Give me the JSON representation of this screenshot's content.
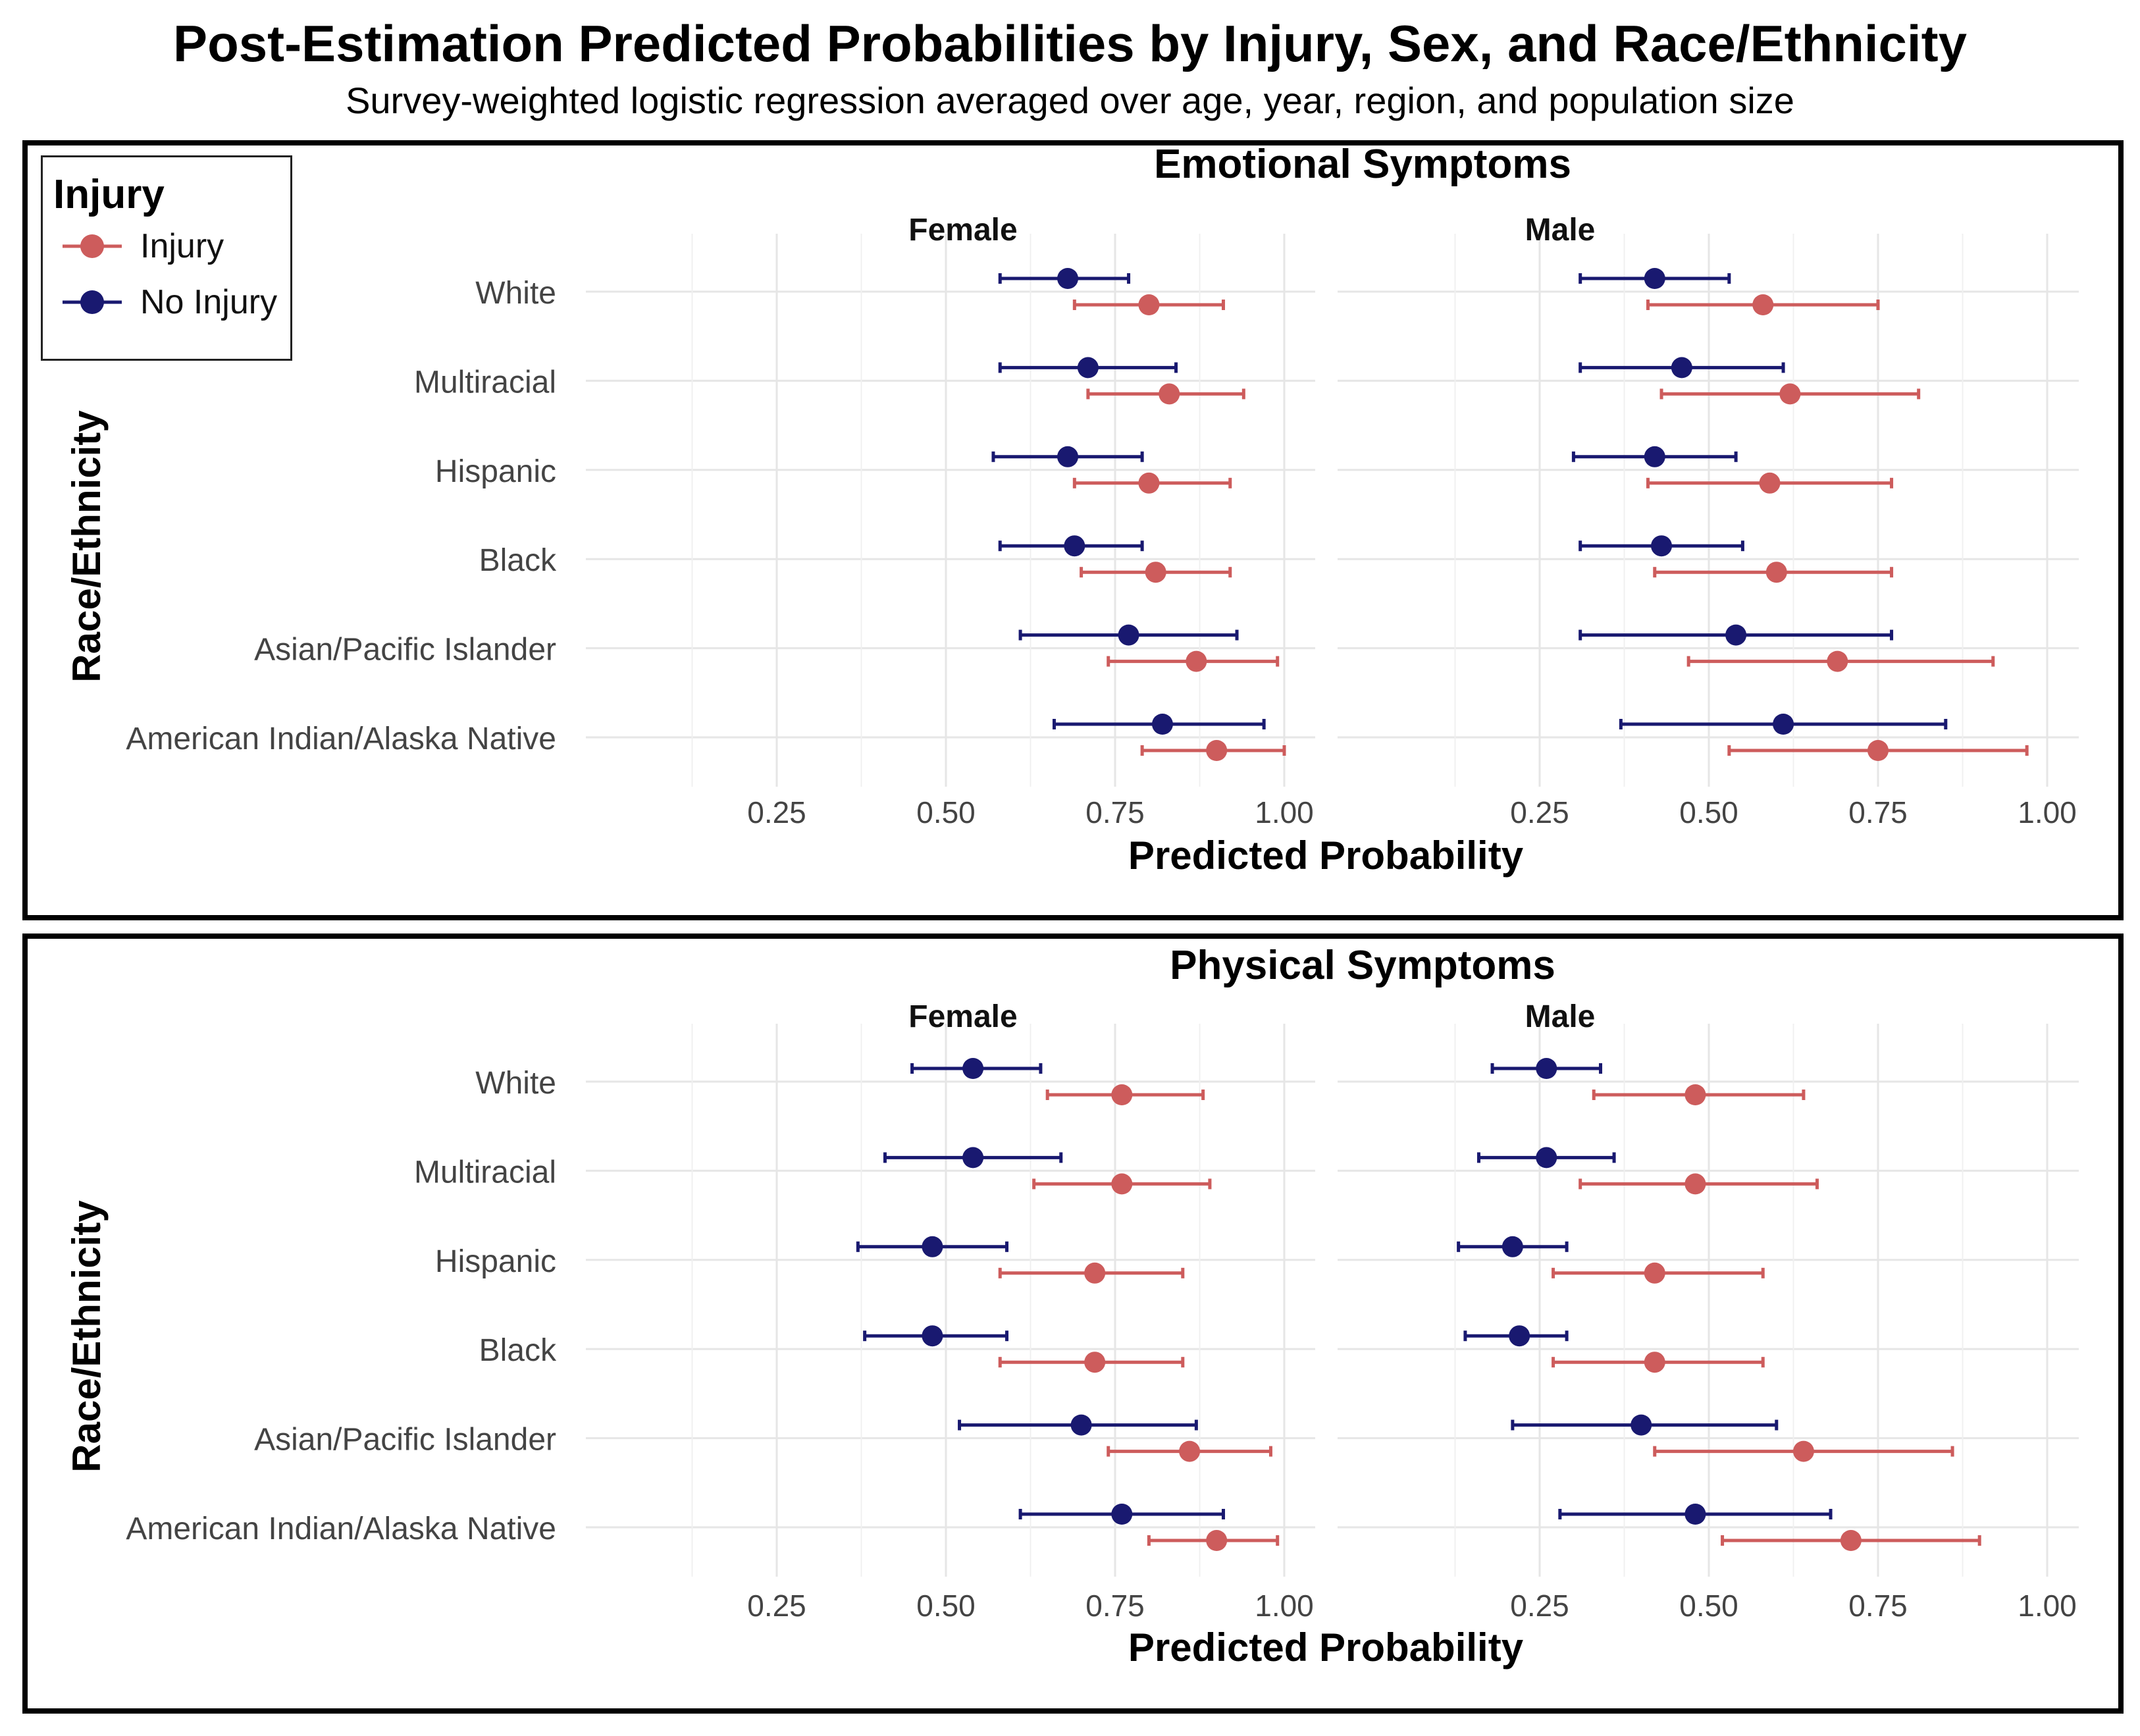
{
  "title": "Post-Estimation Predicted Probabilities by Injury, Sex, and Race/Ethnicity",
  "subtitle": "Survey-weighted logistic regression averaged over age, year, region, and population size",
  "legend": {
    "title": "Injury",
    "items": [
      {
        "label": "Injury",
        "color": "#CD5C5C"
      },
      {
        "label": "No Injury",
        "color": "#191970"
      }
    ]
  },
  "colors": {
    "injury": "#CD5C5C",
    "no_injury": "#191970",
    "grid": "#E6E6E6"
  },
  "chart_data": [
    {
      "type": "dot-errorbar",
      "title": "Emotional Symptoms",
      "xlabel": "Predicted Probability",
      "ylabel": "Race/Ethnicity",
      "xlim": [
        0,
        1.05
      ],
      "xticks": [
        0.25,
        0.5,
        0.75,
        1.0
      ],
      "xtick_labels": [
        "0.25",
        "0.50",
        "0.75",
        "1.00"
      ],
      "categories": [
        "White",
        "Multiracial",
        "Hispanic",
        "Black",
        "Asian/Pacific Islander",
        "American Indian/Alaska Native"
      ],
      "facets": [
        {
          "label": "Female",
          "series": [
            {
              "name": "No Injury",
              "estimate": [
                0.68,
                0.71,
                0.68,
                0.69,
                0.77,
                0.82
              ],
              "lower": [
                0.58,
                0.58,
                0.57,
                0.58,
                0.61,
                0.66
              ],
              "upper": [
                0.77,
                0.84,
                0.79,
                0.79,
                0.93,
                0.97
              ]
            },
            {
              "name": "Injury",
              "estimate": [
                0.8,
                0.83,
                0.8,
                0.81,
                0.87,
                0.9
              ],
              "lower": [
                0.69,
                0.71,
                0.69,
                0.7,
                0.74,
                0.79
              ],
              "upper": [
                0.91,
                0.94,
                0.92,
                0.92,
                0.99,
                1.0
              ]
            }
          ]
        },
        {
          "label": "Male",
          "series": [
            {
              "name": "No Injury",
              "estimate": [
                0.42,
                0.46,
                0.42,
                0.43,
                0.54,
                0.61
              ],
              "lower": [
                0.31,
                0.31,
                0.3,
                0.31,
                0.31,
                0.37
              ],
              "upper": [
                0.53,
                0.61,
                0.54,
                0.55,
                0.77,
                0.85
              ]
            },
            {
              "name": "Injury",
              "estimate": [
                0.58,
                0.62,
                0.59,
                0.6,
                0.69,
                0.75
              ],
              "lower": [
                0.41,
                0.43,
                0.41,
                0.42,
                0.47,
                0.53
              ],
              "upper": [
                0.75,
                0.81,
                0.77,
                0.77,
                0.92,
                0.97
              ]
            }
          ]
        }
      ]
    },
    {
      "type": "dot-errorbar",
      "title": "Physical Symptoms",
      "xlabel": "Predicted Probability",
      "ylabel": "Race/Ethnicity",
      "xlim": [
        0,
        1.05
      ],
      "xticks": [
        0.25,
        0.5,
        0.75,
        1.0
      ],
      "xtick_labels": [
        "0.25",
        "0.50",
        "0.75",
        "1.00"
      ],
      "categories": [
        "White",
        "Multiracial",
        "Hispanic",
        "Black",
        "Asian/Pacific Islander",
        "American Indian/Alaska Native"
      ],
      "facets": [
        {
          "label": "Female",
          "series": [
            {
              "name": "No Injury",
              "estimate": [
                0.54,
                0.54,
                0.48,
                0.48,
                0.7,
                0.76
              ],
              "lower": [
                0.45,
                0.41,
                0.37,
                0.38,
                0.52,
                0.61
              ],
              "upper": [
                0.64,
                0.67,
                0.59,
                0.59,
                0.87,
                0.91
              ]
            },
            {
              "name": "Injury",
              "estimate": [
                0.76,
                0.76,
                0.72,
                0.72,
                0.86,
                0.9
              ],
              "lower": [
                0.65,
                0.63,
                0.58,
                0.58,
                0.74,
                0.8
              ],
              "upper": [
                0.88,
                0.89,
                0.85,
                0.85,
                0.98,
                0.99
              ]
            }
          ]
        },
        {
          "label": "Male",
          "series": [
            {
              "name": "No Injury",
              "estimate": [
                0.26,
                0.26,
                0.21,
                0.22,
                0.4,
                0.48
              ],
              "lower": [
                0.18,
                0.16,
                0.13,
                0.14,
                0.21,
                0.28
              ],
              "upper": [
                0.34,
                0.36,
                0.29,
                0.29,
                0.6,
                0.68
              ]
            },
            {
              "name": "Injury",
              "estimate": [
                0.48,
                0.48,
                0.42,
                0.42,
                0.64,
                0.71
              ],
              "lower": [
                0.33,
                0.31,
                0.27,
                0.27,
                0.42,
                0.52
              ],
              "upper": [
                0.64,
                0.66,
                0.58,
                0.58,
                0.86,
                0.9
              ]
            }
          ]
        }
      ]
    }
  ]
}
